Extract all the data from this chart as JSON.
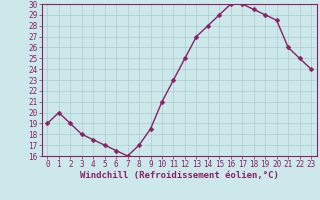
{
  "x": [
    0,
    1,
    2,
    3,
    4,
    5,
    6,
    7,
    8,
    9,
    10,
    11,
    12,
    13,
    14,
    15,
    16,
    17,
    18,
    19,
    20,
    21,
    22,
    23
  ],
  "y": [
    19,
    20,
    19,
    18,
    17.5,
    17,
    16.5,
    16,
    17,
    18.5,
    21,
    23,
    25,
    27,
    28,
    29,
    30,
    30,
    29.5,
    29,
    28.5,
    26,
    25,
    24
  ],
  "line_color": "#882266",
  "marker": "D",
  "marker_size": 2.5,
  "bg_color": "#cce8ea",
  "grid_color": "#aacccc",
  "ylim": [
    16,
    30
  ],
  "xlim_min": -0.5,
  "xlim_max": 23.5,
  "yticks": [
    16,
    17,
    18,
    19,
    20,
    21,
    22,
    23,
    24,
    25,
    26,
    27,
    28,
    29,
    30
  ],
  "xticks": [
    0,
    1,
    2,
    3,
    4,
    5,
    6,
    7,
    8,
    9,
    10,
    11,
    12,
    13,
    14,
    15,
    16,
    17,
    18,
    19,
    20,
    21,
    22,
    23
  ],
  "xlabel": "Windchill (Refroidissement éolien,°C)",
  "xlabel_color": "#882266",
  "tick_color": "#882266",
  "axis_color": "#882266",
  "label_fontsize": 6.5,
  "tick_fontsize": 5.5,
  "linewidth": 1.0
}
